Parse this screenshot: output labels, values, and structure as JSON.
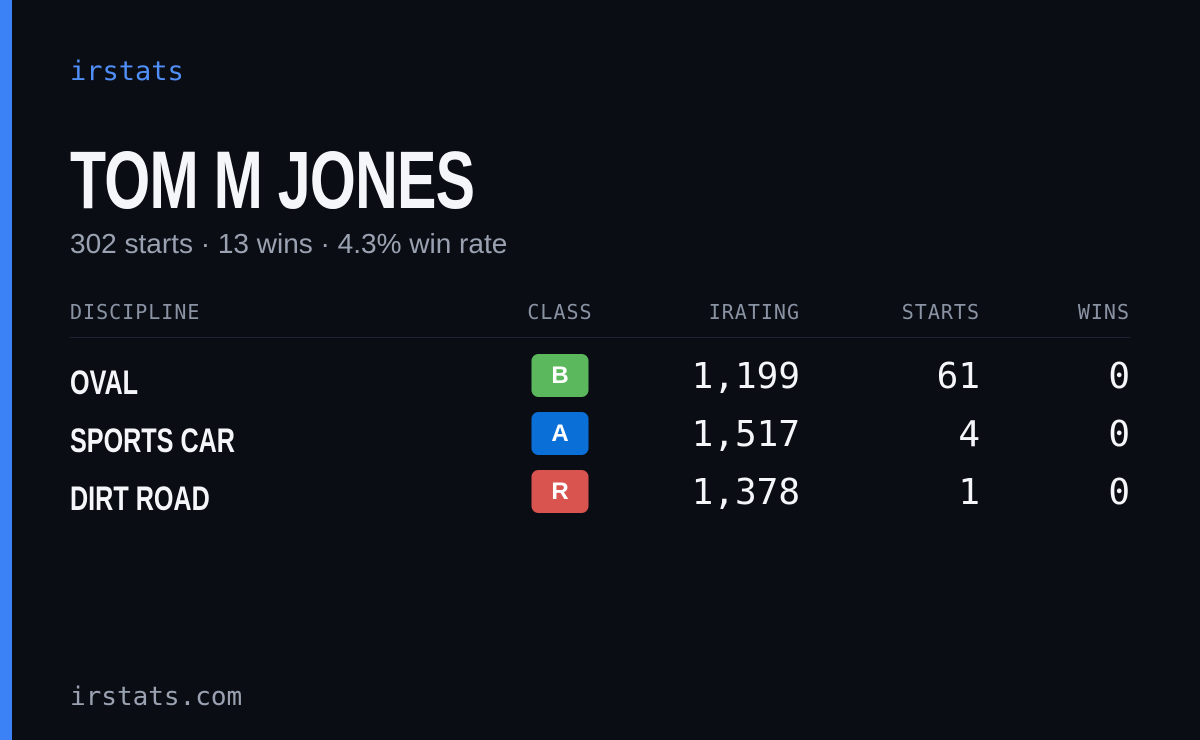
{
  "brand": "irstats",
  "profile": {
    "name": "TOM M JONES",
    "summary": "302 starts · 13 wins · 4.3% win rate"
  },
  "table": {
    "headers": [
      "DISCIPLINE",
      "CLASS",
      "IRATING",
      "STARTS",
      "WINS"
    ],
    "rows": [
      [
        "OVAL",
        "B",
        "1,199",
        "61",
        "0"
      ],
      [
        "SPORTS CAR",
        "A",
        "1,517",
        "4",
        "0"
      ],
      [
        "DIRT ROAD",
        "R",
        "1,378",
        "1",
        "0"
      ]
    ]
  },
  "footer": "irstats.com"
}
